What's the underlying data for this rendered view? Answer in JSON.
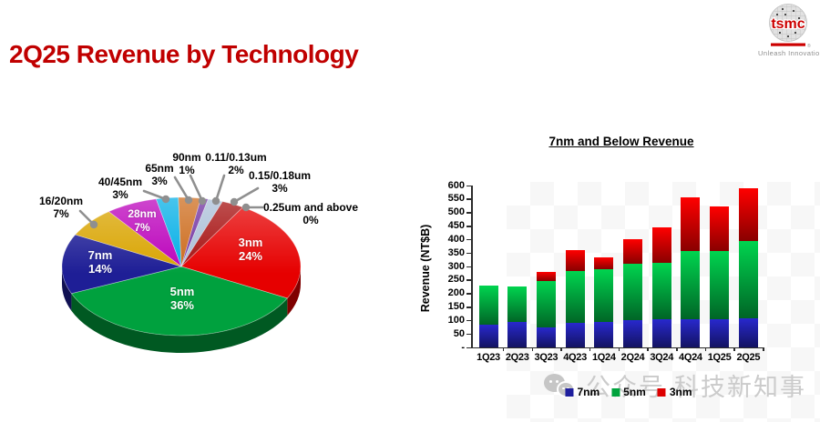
{
  "header": {
    "title": "2Q25 Revenue by Technology",
    "logo": {
      "brand": "tsmc",
      "registered": "®",
      "tagline": "Unleash Innovation"
    }
  },
  "chart_data": [
    {
      "type": "pie",
      "title": "2Q25 Revenue by Technology",
      "unit": "percent",
      "style": "3d",
      "start_angle_deg": 31,
      "slices": [
        {
          "label": "3nm",
          "value": 24,
          "color": "#e60000"
        },
        {
          "label": "5nm",
          "value": 36,
          "color": "#00a13e"
        },
        {
          "label": "7nm",
          "value": 14,
          "color": "#1e1e96"
        },
        {
          "label": "16/20nm",
          "value": 7,
          "color": "#d9a400"
        },
        {
          "label": "28nm",
          "value": 7,
          "color": "#bb00bb"
        },
        {
          "label": "40/45nm",
          "value": 3,
          "color": "#00aee6"
        },
        {
          "label": "65nm",
          "value": 3,
          "color": "#cc6a1a"
        },
        {
          "label": "90nm",
          "value": 1,
          "color": "#7030a0"
        },
        {
          "label": "0.11/0.13um",
          "value": 2,
          "color": "#aabfd8"
        },
        {
          "label": "0.15/0.18um",
          "value": 3,
          "color": "#a50e0e"
        },
        {
          "label": "0.25um and above",
          "value": 0,
          "color": "#8c8c8c"
        }
      ]
    },
    {
      "type": "bar",
      "stacked": true,
      "title": "7nm and Below Revenue",
      "ylabel": "Revenue (NT$B)",
      "ylim": [
        0,
        600
      ],
      "ytick_step": 50,
      "zero_tick_label": "-",
      "grid": false,
      "legend_position": "bottom",
      "categories": [
        "1Q23",
        "2Q23",
        "3Q23",
        "4Q23",
        "1Q24",
        "2Q24",
        "3Q24",
        "4Q24",
        "1Q25",
        "2Q25"
      ],
      "series": [
        {
          "name": "7nm",
          "color": "#1f1f9e",
          "values": [
            85,
            94,
            75,
            90,
            96,
            100,
            106,
            103,
            106,
            108
          ]
        },
        {
          "name": "5nm",
          "color": "#00a33d",
          "values": [
            143,
            132,
            172,
            192,
            194,
            210,
            207,
            255,
            252,
            288
          ]
        },
        {
          "name": "3nm",
          "color": "#dd0000",
          "values": [
            0,
            0,
            33,
            80,
            45,
            92,
            133,
            198,
            165,
            193
          ]
        }
      ]
    }
  ],
  "watermark": {
    "platform_label": "公众号",
    "account_name": "科技新知事"
  }
}
